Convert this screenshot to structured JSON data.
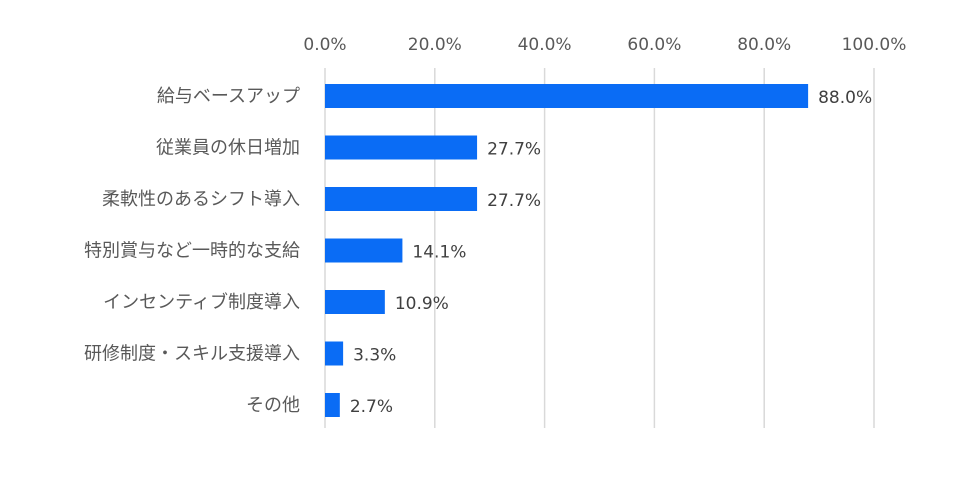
{
  "chart_data": {
    "type": "bar",
    "orientation": "horizontal",
    "title": "",
    "xlabel": "",
    "ylabel": "",
    "xlim": [
      0,
      100
    ],
    "ticks": [
      "0.0%",
      "20.0%",
      "40.0%",
      "60.0%",
      "80.0%",
      "100.0%"
    ],
    "tick_values": [
      0,
      20,
      40,
      60,
      80,
      100
    ],
    "categories": [
      "給与ベースアップ",
      "従業員の休日増加",
      "柔軟性のあるシフト導入",
      "特別賞与など一時的な支給",
      "インセンティブ制度導入",
      "研修制度・スキル支援導入",
      "その他"
    ],
    "values": [
      88.0,
      27.7,
      27.7,
      14.1,
      10.9,
      3.3,
      2.7
    ],
    "value_labels": [
      "88.0%",
      "27.7%",
      "27.7%",
      "14.1%",
      "10.9%",
      "3.3%",
      "2.7%"
    ],
    "grid": true,
    "axis_position": "top",
    "bar_color": "#0a6cf5",
    "grid_color": "#d9d9d9",
    "text_color": "#595959"
  }
}
